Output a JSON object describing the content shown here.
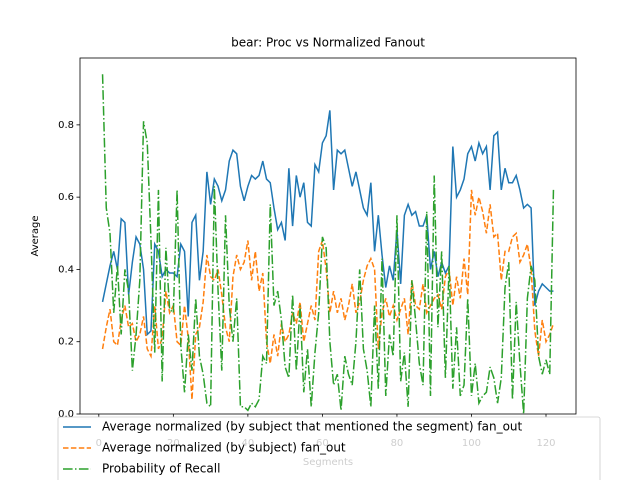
{
  "chart_data": {
    "type": "line",
    "title": "bear: Proc vs Normalized Fanout",
    "xlabel": "Segments",
    "ylabel": "Average",
    "x": [
      1,
      2,
      3,
      4,
      5,
      6,
      7,
      8,
      9,
      10,
      11,
      12,
      13,
      14,
      15,
      16,
      17,
      18,
      19,
      20,
      21,
      22,
      23,
      24,
      25,
      26,
      27,
      28,
      29,
      30,
      31,
      32,
      33,
      34,
      35,
      36,
      37,
      38,
      39,
      40,
      41,
      42,
      43,
      44,
      45,
      46,
      47,
      48,
      49,
      50,
      51,
      52,
      53,
      54,
      55,
      56,
      57,
      58,
      59,
      60,
      61,
      62,
      63,
      64,
      65,
      66,
      67,
      68,
      69,
      70,
      71,
      72,
      73,
      74,
      75,
      76,
      77,
      78,
      79,
      80,
      81,
      82,
      83,
      84,
      85,
      86,
      87,
      88,
      89,
      90,
      91,
      92,
      93,
      94,
      95,
      96,
      97,
      98,
      99,
      100,
      101,
      102,
      103,
      104,
      105,
      106,
      107,
      108,
      109,
      110,
      111,
      112,
      113,
      114,
      115,
      116,
      117,
      118,
      119,
      120,
      121,
      122
    ],
    "series": [
      {
        "name": "Average normalized (by subject that mentioned the segment) fan_out",
        "color": "#1f77b4",
        "linestyle": "solid",
        "values": [
          0.31,
          0.36,
          0.41,
          0.45,
          0.4,
          0.54,
          0.53,
          0.33,
          0.42,
          0.49,
          0.47,
          0.4,
          0.22,
          0.23,
          0.47,
          0.45,
          0.38,
          0.4,
          0.39,
          0.39,
          0.38,
          0.47,
          0.45,
          0.27,
          0.53,
          0.55,
          0.37,
          0.45,
          0.67,
          0.58,
          0.65,
          0.63,
          0.59,
          0.62,
          0.7,
          0.73,
          0.72,
          0.63,
          0.59,
          0.63,
          0.66,
          0.65,
          0.66,
          0.7,
          0.65,
          0.64,
          0.57,
          0.51,
          0.53,
          0.48,
          0.68,
          0.52,
          0.66,
          0.6,
          0.64,
          0.53,
          0.52,
          0.69,
          0.67,
          0.75,
          0.77,
          0.84,
          0.62,
          0.73,
          0.72,
          0.73,
          0.68,
          0.63,
          0.67,
          0.62,
          0.57,
          0.55,
          0.64,
          0.45,
          0.55,
          0.44,
          0.35,
          0.41,
          0.37,
          0.51,
          0.36,
          0.55,
          0.58,
          0.55,
          0.56,
          0.52,
          0.52,
          0.55,
          0.4,
          0.45,
          0.38,
          0.42,
          0.39,
          0.41,
          0.74,
          0.6,
          0.62,
          0.65,
          0.72,
          0.74,
          0.7,
          0.75,
          0.72,
          0.74,
          0.62,
          0.77,
          0.78,
          0.62,
          0.68,
          0.64,
          0.64,
          0.66,
          0.62,
          0.57,
          0.58,
          0.57,
          0.3,
          0.34,
          0.36,
          0.35,
          0.34,
          0.34
        ]
      },
      {
        "name": "Average normalized (by subject) fan_out",
        "color": "#ff7f0e",
        "linestyle": "dashed",
        "values": [
          0.18,
          0.24,
          0.29,
          0.2,
          0.19,
          0.26,
          0.3,
          0.24,
          0.25,
          0.2,
          0.22,
          0.27,
          0.18,
          0.16,
          0.3,
          0.18,
          0.21,
          0.34,
          0.28,
          0.3,
          0.2,
          0.19,
          0.3,
          0.21,
          0.04,
          0.22,
          0.24,
          0.31,
          0.44,
          0.38,
          0.37,
          0.4,
          0.33,
          0.24,
          0.2,
          0.38,
          0.44,
          0.4,
          0.42,
          0.48,
          0.37,
          0.45,
          0.34,
          0.39,
          0.2,
          0.14,
          0.22,
          0.16,
          0.25,
          0.2,
          0.22,
          0.28,
          0.25,
          0.31,
          0.2,
          0.25,
          0.3,
          0.26,
          0.45,
          0.48,
          0.4,
          0.28,
          0.34,
          0.28,
          0.32,
          0.26,
          0.3,
          0.36,
          0.28,
          0.31,
          0.37,
          0.41,
          0.43,
          0.4,
          0.18,
          0.28,
          0.32,
          0.27,
          0.3,
          0.26,
          0.29,
          0.32,
          0.22,
          0.37,
          0.3,
          0.29,
          0.36,
          0.28,
          0.3,
          0.32,
          0.33,
          0.29,
          0.38,
          0.4,
          0.3,
          0.38,
          0.32,
          0.43,
          0.33,
          0.62,
          0.55,
          0.6,
          0.56,
          0.5,
          0.58,
          0.49,
          0.5,
          0.37,
          0.45,
          0.45,
          0.49,
          0.5,
          0.42,
          0.44,
          0.47,
          0.4,
          0.23,
          0.16,
          0.26,
          0.2,
          0.22,
          0.25
        ]
      },
      {
        "name": "Probability of Recall",
        "color": "#2ca02c",
        "linestyle": "dashdot",
        "values": [
          0.94,
          0.57,
          0.5,
          0.28,
          0.41,
          0.22,
          0.4,
          0.34,
          0.12,
          0.22,
          0.37,
          0.81,
          0.75,
          0.48,
          0.17,
          0.62,
          0.09,
          0.46,
          0.29,
          0.28,
          0.62,
          0.19,
          0.06,
          0.22,
          0.12,
          0.32,
          0.16,
          0.11,
          0.03,
          0.02,
          0.63,
          0.34,
          0.12,
          0.55,
          0.3,
          0.2,
          0.32,
          0.02,
          0.02,
          0.01,
          0.03,
          0.02,
          0.04,
          0.16,
          0.14,
          0.58,
          0.3,
          0.34,
          0.26,
          0.13,
          0.1,
          0.33,
          0.12,
          0.3,
          0.06,
          0.18,
          0.02,
          0.17,
          0.28,
          0.49,
          0.46,
          0.2,
          0.08,
          0.11,
          0.01,
          0.16,
          0.11,
          0.08,
          0.2,
          0.4,
          0.18,
          0.12,
          0.02,
          0.3,
          0.07,
          0.43,
          0.05,
          0.22,
          0.16,
          0.55,
          0.09,
          0.17,
          0.02,
          0.37,
          0.26,
          0.14,
          0.08,
          0.56,
          0.05,
          0.66,
          0.24,
          0.45,
          0.1,
          0.41,
          0.07,
          0.24,
          0.05,
          0.08,
          0.32,
          0.05,
          0.14,
          0.03,
          0.05,
          0.06,
          0.13,
          0.1,
          0.03,
          0.1,
          0.35,
          0.42,
          0.04,
          0.31,
          0.14,
          0.0,
          0.32,
          0.41,
          0.37,
          0.16,
          0.11,
          0.15,
          0.11,
          0.62
        ]
      }
    ],
    "xlim": [
      -5.05,
      128.05
    ],
    "xticks": [
      0,
      20,
      40,
      60,
      80,
      100,
      120
    ],
    "ylim": [
      0,
      0.985
    ],
    "yticks": [
      {
        "value": 0,
        "label": "0.0"
      },
      0.2,
      0.4,
      0.6,
      0.8
    ],
    "legend": "lower center"
  }
}
